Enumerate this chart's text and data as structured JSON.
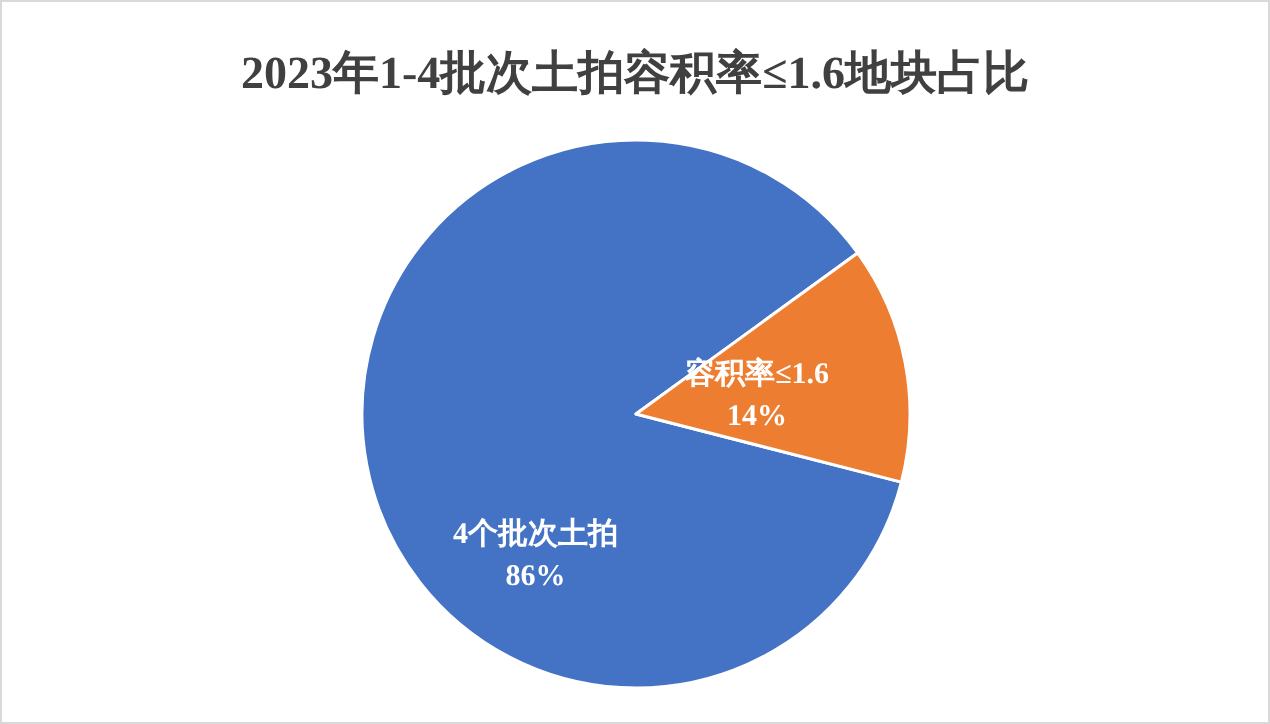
{
  "chart_data": {
    "type": "pie",
    "title": "2023年1-4批次土拍容积率≤1.6地块占比",
    "categories": [
      "4个批次土拍",
      "容积率≤1.6"
    ],
    "values": [
      86,
      14
    ],
    "colors": [
      "#4472c4",
      "#ed7d31"
    ],
    "value_labels": [
      "86%",
      "14%"
    ],
    "legend": false
  }
}
